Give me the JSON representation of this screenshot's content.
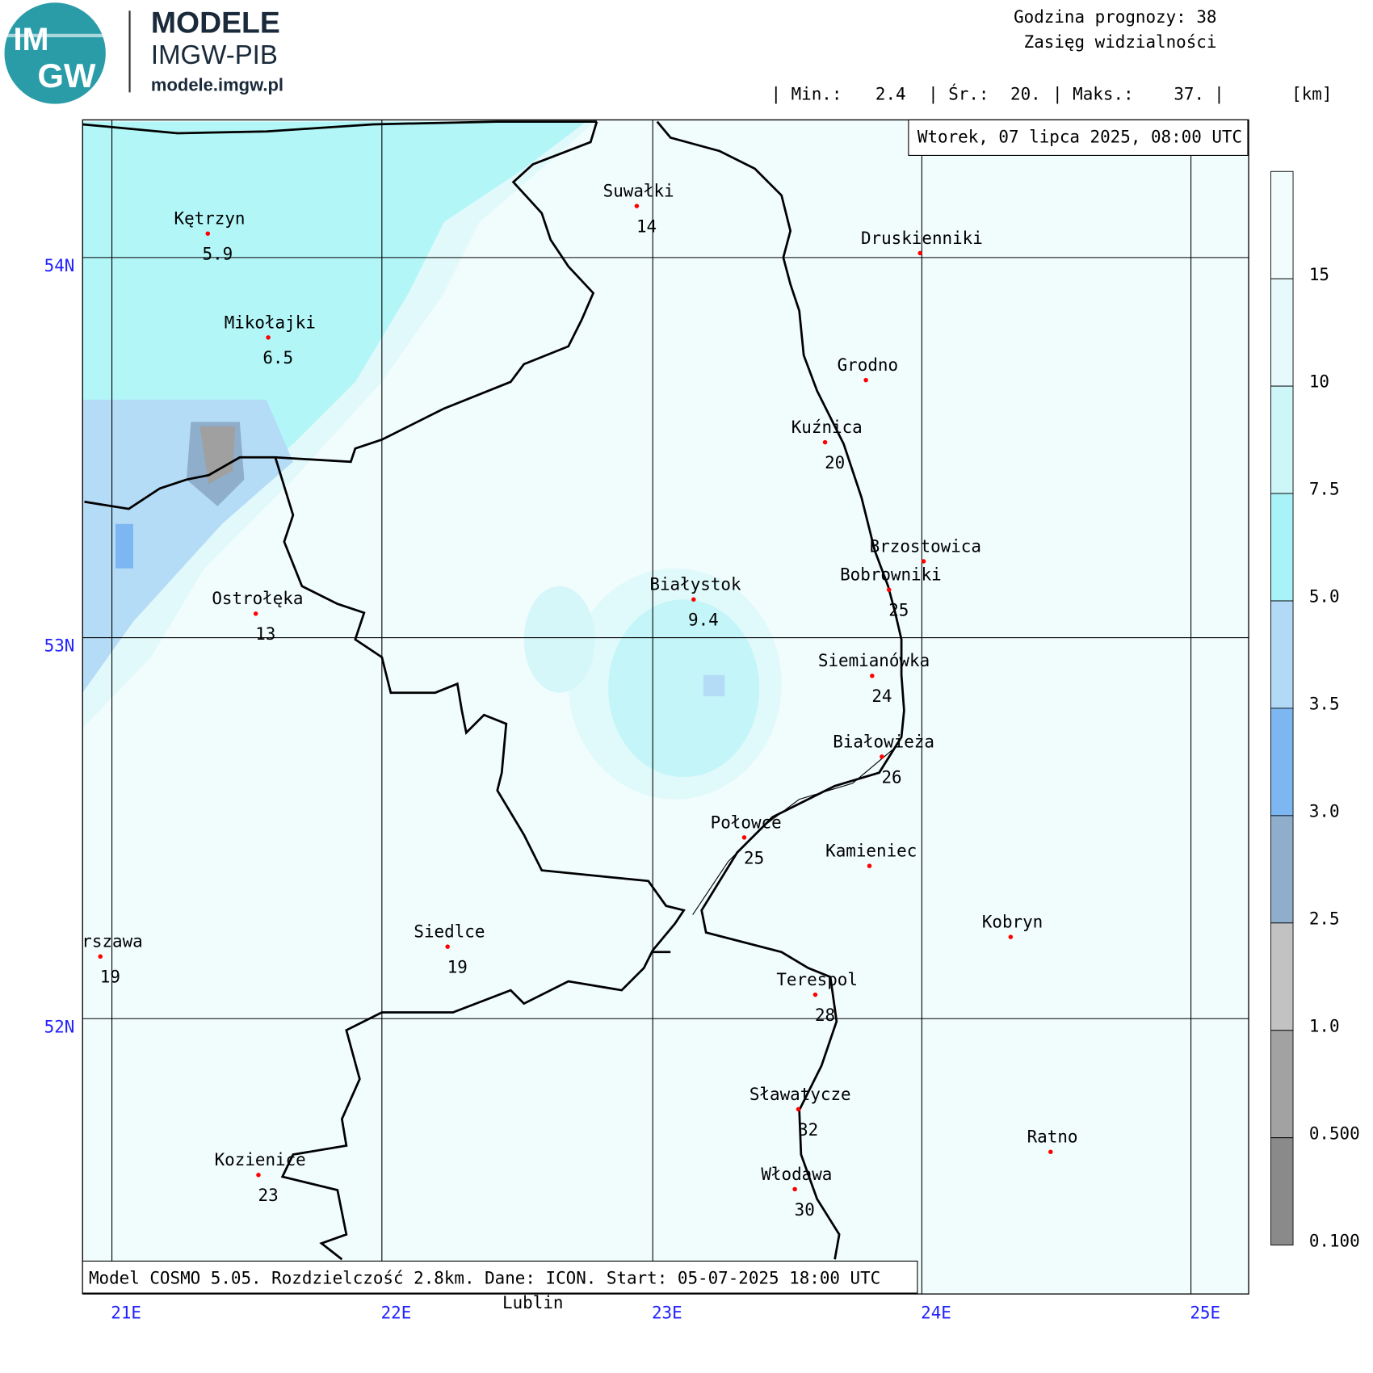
{
  "header": {
    "logo_top": "IM",
    "logo_bottom": "GW",
    "title": "MODELE",
    "subtitle": "IMGW-PIB",
    "url": "modele.imgw.pl"
  },
  "forecast": {
    "hour": "Godzina prognozy: 38",
    "field": "Zasięg widzialności"
  },
  "stats": [
    {
      "label": "| Min.:",
      "value": "2.4"
    },
    {
      "label": "| Śr.:",
      "value": "20."
    },
    {
      "label": "| Maks.:",
      "value": "37."
    }
  ],
  "stats_end": "|",
  "unit": "[km]",
  "date": "Wtorek, 07 lipca 2025, 08:00 UTC",
  "footer": "Model COSMO 5.05. Rozdzielczość 2.8km. Dane: ICON. Start: 05-07-2025 18:00 UTC",
  "lat_labels": [
    "54N",
    "53N",
    "52N"
  ],
  "lon_labels": [
    "21E",
    "22E",
    "23E",
    "24E",
    "25E"
  ],
  "legend": {
    "colors": [
      "#f2fcfd",
      "#e6fafb",
      "#cdf6f9",
      "#a7f3f7",
      "#b2daf7",
      "#7cb7f2",
      "#8eaecb",
      "#c2c2c2",
      "#a2a2a2",
      "#8a8a8a"
    ],
    "labels": [
      "15",
      "10",
      "7.5",
      "5.0",
      "3.5",
      "3.0",
      "2.5",
      "1.0",
      "0.500",
      "0.100"
    ]
  },
  "cities": [
    {
      "name": "Kętrzyn",
      "value": 5.9
    },
    {
      "name": "Suwałki",
      "value": 14
    },
    {
      "name": "Druskienniki"
    },
    {
      "name": "Mikołajki",
      "value": 6.5
    },
    {
      "name": "Grodno"
    },
    {
      "name": "Kuźnica",
      "value": 20
    },
    {
      "name": "Brzostowica"
    },
    {
      "name": "Bobrowniki",
      "value": 25
    },
    {
      "name": "Białystok",
      "value": 9.4
    },
    {
      "name": "Ostrołęka",
      "value": 13
    },
    {
      "name": "Siemianówka",
      "value": 24
    },
    {
      "name": "Białowieża",
      "value": 26
    },
    {
      "name": "Połowce",
      "value": 25
    },
    {
      "name": "Kamieniec"
    },
    {
      "name": "Kobryn"
    },
    {
      "name": "Warszawa",
      "value": 19
    },
    {
      "name": "Siedlce",
      "value": 19
    },
    {
      "name": "Terespol",
      "value": 28
    },
    {
      "name": "Sławatycze",
      "value": 32
    },
    {
      "name": "Ratno"
    },
    {
      "name": "Kozienice",
      "value": 23
    },
    {
      "name": "Włodawa",
      "value": 30
    }
  ],
  "extra_label": "Lublin"
}
